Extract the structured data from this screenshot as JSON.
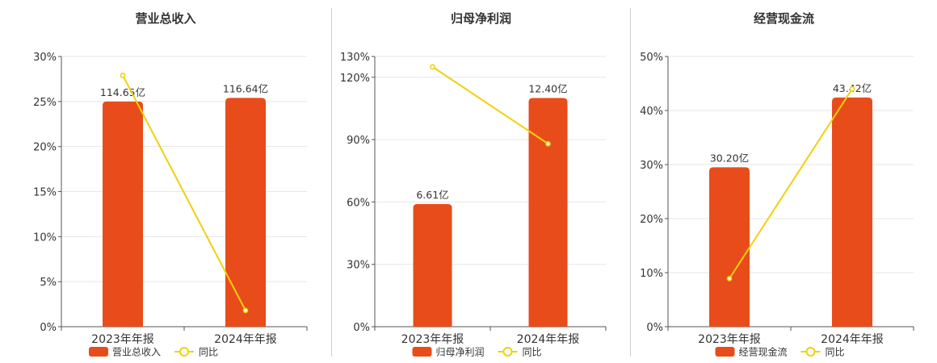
{
  "colors": {
    "bar": "#e84c1a",
    "line": "#f2d00c",
    "grid": "#e6e6e6",
    "axis": "#555555",
    "text": "#333333"
  },
  "chart_data": [
    {
      "type": "bar",
      "title": "营业总收入",
      "categories": [
        "2023年年报",
        "2024年年报"
      ],
      "y_ticks": [
        "0%",
        "5%",
        "10%",
        "15%",
        "20%",
        "25%",
        "30%"
      ],
      "ylim": [
        0,
        30
      ],
      "series": [
        {
          "name": "营业总收入",
          "kind": "bar",
          "values": [
            25.0,
            25.4
          ],
          "labels": [
            "114.65亿",
            "116.64亿"
          ]
        },
        {
          "name": "同比",
          "kind": "line",
          "values": [
            27.9,
            1.8
          ]
        }
      ],
      "legend": "bottom-center",
      "grid": true
    },
    {
      "type": "bar",
      "title": "归母净利润",
      "categories": [
        "2023年年报",
        "2024年年报"
      ],
      "y_ticks": [
        "0%",
        "30%",
        "60%",
        "90%",
        "120%",
        "130%"
      ],
      "ylim": [
        0,
        130
      ],
      "series": [
        {
          "name": "归母净利润",
          "kind": "bar",
          "values": [
            59.0,
            110.0
          ],
          "labels": [
            "6.61亿",
            "12.40亿"
          ]
        },
        {
          "name": "同比",
          "kind": "line",
          "values": [
            125.0,
            88.0
          ]
        }
      ],
      "legend": "bottom-center",
      "grid": true
    },
    {
      "type": "bar",
      "title": "经营现金流",
      "categories": [
        "2023年年报",
        "2024年年报"
      ],
      "y_ticks": [
        "0%",
        "10%",
        "20%",
        "30%",
        "40%",
        "50%"
      ],
      "ylim": [
        0,
        50
      ],
      "series": [
        {
          "name": "经营现金流",
          "kind": "bar",
          "values": [
            29.5,
            42.4
          ],
          "labels": [
            "30.20亿",
            "43.42亿"
          ]
        },
        {
          "name": "同比",
          "kind": "line",
          "values": [
            8.9,
            44.0
          ]
        }
      ],
      "legend": "bottom-center",
      "grid": true
    }
  ]
}
